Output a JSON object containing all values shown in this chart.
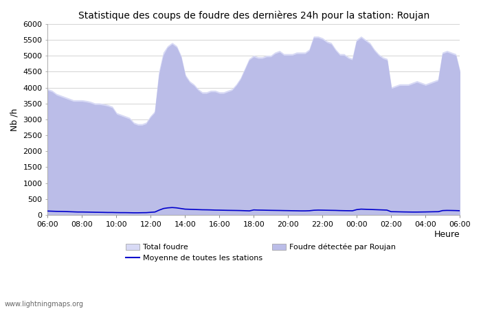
{
  "title": "Statistique des coups de foudre des dernières 24h pour la station: Roujan",
  "xlabel": "Heure",
  "ylabel": "Nb /h",
  "ylim": [
    0,
    6000
  ],
  "yticks": [
    0,
    500,
    1000,
    1500,
    2000,
    2500,
    3000,
    3500,
    4000,
    4500,
    5000,
    5500,
    6000
  ],
  "x_labels": [
    "06:00",
    "08:00",
    "10:00",
    "12:00",
    "14:00",
    "16:00",
    "18:00",
    "20:00",
    "22:00",
    "00:00",
    "02:00",
    "04:00",
    "06:00"
  ],
  "background_color": "#ffffff",
  "plot_bg_color": "#ffffff",
  "grid_color": "#cccccc",
  "watermark": "www.lightningmaps.org",
  "total_foudre_color": "#d8daf5",
  "roujan_color": "#bbbde8",
  "moyenne_color": "#0000cc",
  "time_hours": [
    6.0,
    6.25,
    6.5,
    6.75,
    7.0,
    7.25,
    7.5,
    7.75,
    8.0,
    8.25,
    8.5,
    8.75,
    9.0,
    9.25,
    9.5,
    9.75,
    10.0,
    10.25,
    10.5,
    10.75,
    11.0,
    11.25,
    11.5,
    11.75,
    12.0,
    12.25,
    12.5,
    12.75,
    13.0,
    13.25,
    13.5,
    13.75,
    14.0,
    14.25,
    14.5,
    14.75,
    15.0,
    15.25,
    15.5,
    15.75,
    16.0,
    16.25,
    16.5,
    16.75,
    17.0,
    17.25,
    17.5,
    17.75,
    18.0,
    18.25,
    18.5,
    18.75,
    19.0,
    19.25,
    19.5,
    19.75,
    20.0,
    20.25,
    20.5,
    20.75,
    21.0,
    21.25,
    21.5,
    21.75,
    22.0,
    22.25,
    22.5,
    22.75,
    23.0,
    23.25,
    23.5,
    23.75,
    24.0,
    24.25,
    24.5,
    24.75,
    25.0,
    25.25,
    25.5,
    25.75,
    26.0,
    26.25,
    26.5,
    26.75,
    27.0,
    27.25,
    27.5,
    27.75,
    28.0,
    28.25,
    28.5,
    28.75,
    29.0,
    29.25,
    29.5,
    29.75,
    30.0
  ],
  "total_foudre": [
    3950,
    3900,
    3800,
    3750,
    3700,
    3650,
    3600,
    3600,
    3600,
    3580,
    3550,
    3500,
    3500,
    3480,
    3450,
    3400,
    3200,
    3150,
    3100,
    3050,
    2900,
    2850,
    2850,
    2900,
    3100,
    3250,
    4500,
    5100,
    5300,
    5400,
    5300,
    5000,
    4400,
    4200,
    4100,
    3950,
    3850,
    3850,
    3900,
    3900,
    3850,
    3850,
    3900,
    3950,
    4100,
    4300,
    4600,
    4900,
    5000,
    4950,
    4950,
    5000,
    5000,
    5100,
    5150,
    5050,
    5050,
    5050,
    5100,
    5100,
    5100,
    5200,
    5600,
    5600,
    5550,
    5450,
    5400,
    5200,
    5050,
    5050,
    4950,
    4900,
    5500,
    5600,
    5500,
    5400,
    5200,
    5050,
    4950,
    4900,
    4000,
    4050,
    4100,
    4100,
    4100,
    4150,
    4200,
    4150,
    4100,
    4150,
    4200,
    4250,
    5100,
    5150,
    5100,
    5050,
    4500
  ],
  "roujan_foudre": [
    3900,
    3850,
    3750,
    3700,
    3650,
    3600,
    3550,
    3550,
    3550,
    3530,
    3500,
    3450,
    3450,
    3430,
    3400,
    3350,
    3150,
    3100,
    3050,
    3000,
    2850,
    2800,
    2800,
    2850,
    3050,
    3200,
    4400,
    5000,
    5250,
    5350,
    5250,
    4950,
    4350,
    4150,
    4050,
    3900,
    3800,
    3800,
    3850,
    3850,
    3800,
    3800,
    3850,
    3900,
    4050,
    4250,
    4550,
    4850,
    4950,
    4900,
    4900,
    4950,
    4950,
    5050,
    5100,
    5000,
    5000,
    5000,
    5050,
    5050,
    5050,
    5150,
    5550,
    5550,
    5500,
    5400,
    5350,
    5150,
    5000,
    5000,
    4900,
    4850,
    5450,
    5550,
    5450,
    5350,
    5150,
    5000,
    4900,
    4850,
    3950,
    4000,
    4050,
    4050,
    4050,
    4100,
    4150,
    4100,
    4050,
    4100,
    4150,
    4200,
    5050,
    5100,
    5050,
    5000,
    4450
  ],
  "moyenne": [
    120,
    115,
    110,
    108,
    105,
    100,
    95,
    90,
    90,
    88,
    85,
    82,
    80,
    78,
    75,
    75,
    72,
    70,
    70,
    68,
    65,
    65,
    68,
    70,
    80,
    90,
    150,
    200,
    220,
    230,
    220,
    200,
    180,
    175,
    170,
    165,
    160,
    158,
    155,
    150,
    148,
    145,
    142,
    140,
    138,
    135,
    130,
    125,
    155,
    150,
    148,
    145,
    142,
    140,
    138,
    135,
    133,
    130,
    128,
    125,
    125,
    130,
    145,
    150,
    148,
    145,
    142,
    140,
    135,
    132,
    130,
    128,
    165,
    180,
    175,
    170,
    165,
    160,
    155,
    150,
    100,
    98,
    95,
    92,
    90,
    88,
    88,
    90,
    92,
    95,
    98,
    100,
    135,
    140,
    138,
    135,
    130
  ]
}
